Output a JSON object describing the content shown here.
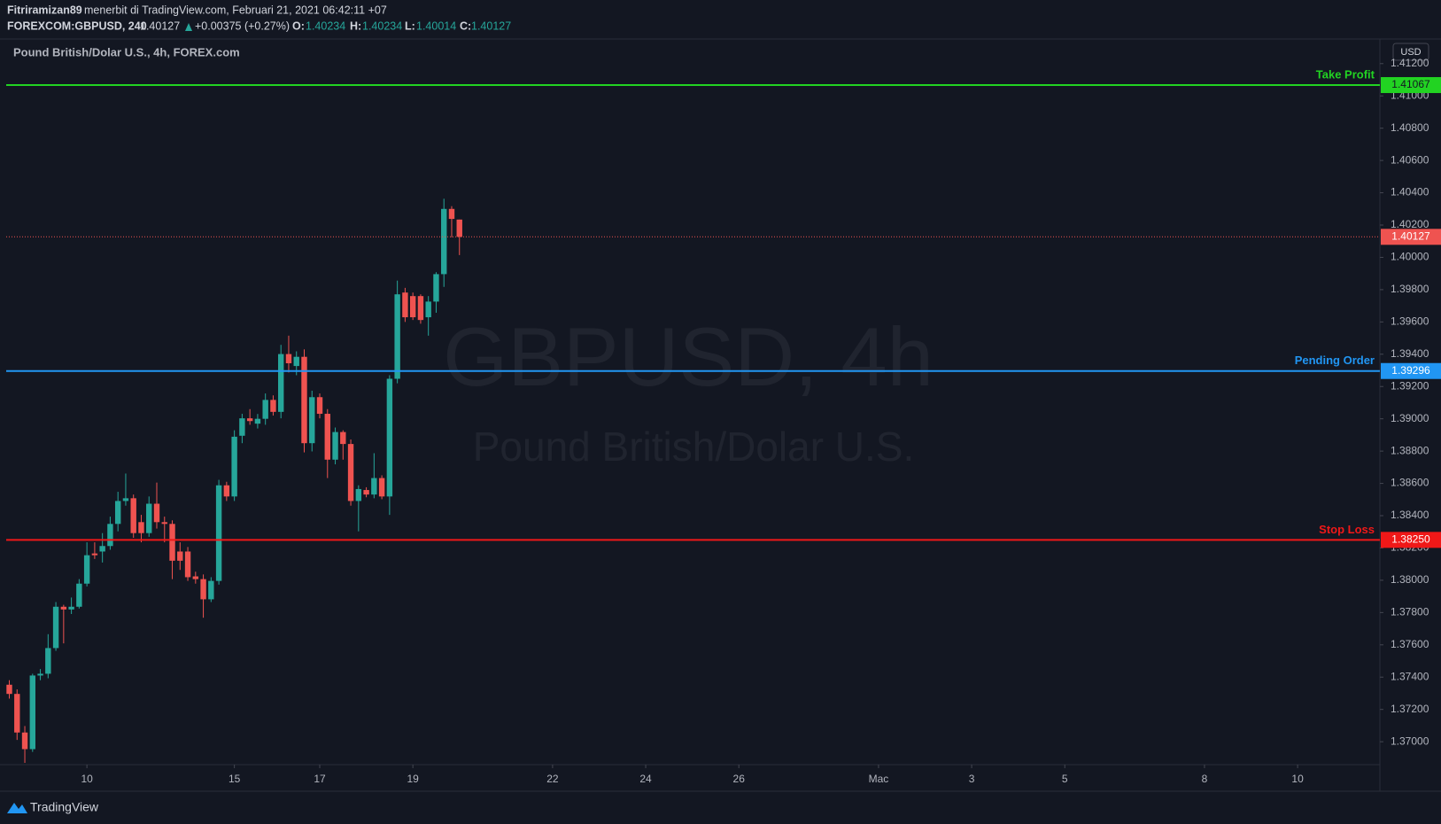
{
  "header": {
    "author": "Fitriramizan89",
    "published": "menerbit di TradingView.com, Februari 21, 2021 06:42:11 +07",
    "symbol": "FOREXCOM:GBPUSD, 240",
    "change": "+0.00375 (+0.27%)",
    "o_label": "O:",
    "h_label": "H:",
    "l_label": "L:",
    "c_label": "C:"
  },
  "footer": {
    "brand": "TradingView"
  },
  "chart_data": {
    "type": "candlestick",
    "title": "Pound British/Dolar U.S., 4h, FOREX.com",
    "watermark": "GBPUSD, 4h",
    "watermark_subtitle": "Pound British/Dolar U.S.",
    "currency": "USD",
    "up_color": "#26a69a",
    "down_color": "#ef5350",
    "grid": false,
    "open": [
      1.37353,
      1.37296,
      1.37057,
      1.36954,
      1.3741,
      1.37421,
      1.3758,
      1.37836,
      1.37819,
      1.37836,
      1.37979,
      1.38166,
      1.38178,
      1.38212,
      1.38349,
      1.38491,
      1.38508,
      1.3836,
      1.38292,
      1.38474,
      1.3836,
      1.38349,
      1.38178,
      1.38178,
      1.38024,
      1.38007,
      1.37882,
      1.37996,
      1.38588,
      1.38519,
      1.38895,
      1.39003,
      1.3897,
      1.39,
      1.39117,
      1.39043,
      1.39401,
      1.39327,
      1.39384,
      1.38849,
      1.39134,
      1.39031,
      1.38747,
      1.38918,
      1.38844,
      1.38491,
      1.38559,
      1.38531,
      1.38633,
      1.38519,
      1.39248,
      1.39782,
      1.3976,
      1.3976,
      1.39629,
      1.39726,
      1.39896,
      1.403,
      1.40234
    ],
    "high": [
      1.37381,
      1.37324,
      1.37097,
      1.37421,
      1.3745,
      1.37666,
      1.37865,
      1.37848,
      1.37893,
      1.38007,
      1.38235,
      1.38235,
      1.38292,
      1.38394,
      1.38548,
      1.38661,
      1.38531,
      1.38405,
      1.38519,
      1.38605,
      1.38394,
      1.38371,
      1.38235,
      1.38206,
      1.38053,
      1.38036,
      1.38019,
      1.38622,
      1.3861,
      1.38929,
      1.39031,
      1.3906,
      1.3903,
      1.39157,
      1.39145,
      1.39458,
      1.39515,
      1.39418,
      1.3943,
      1.39174,
      1.39157,
      1.3906,
      1.38946,
      1.38929,
      1.38872,
      1.38588,
      1.38576,
      1.38787,
      1.3865,
      1.3927,
      1.39856,
      1.39811,
      1.39782,
      1.39771,
      1.3976,
      1.39908,
      1.40363,
      1.40317,
      1.40234
    ],
    "low": [
      1.37267,
      1.37011,
      1.36869,
      1.36937,
      1.37381,
      1.37393,
      1.37563,
      1.37609,
      1.37791,
      1.37825,
      1.37962,
      1.38132,
      1.3811,
      1.38189,
      1.38303,
      1.38462,
      1.38263,
      1.38235,
      1.38269,
      1.3832,
      1.38235,
      1.38007,
      1.38064,
      1.37996,
      1.37979,
      1.37768,
      1.37865,
      1.37973,
      1.38491,
      1.38491,
      1.38849,
      1.38963,
      1.3894,
      1.38963,
      1.3902,
      1.39003,
      1.39287,
      1.3927,
      1.38792,
      1.38798,
      1.39003,
      1.38633,
      1.38718,
      1.38747,
      1.38462,
      1.38303,
      1.38514,
      1.38508,
      1.38502,
      1.38405,
      1.3922,
      1.396,
      1.39612,
      1.39589,
      1.39515,
      1.39657,
      1.39817,
      1.40124,
      1.40014
    ],
    "close": [
      1.37296,
      1.37057,
      1.36954,
      1.3741,
      1.37421,
      1.3758,
      1.37836,
      1.37819,
      1.37836,
      1.37979,
      1.38155,
      1.38155,
      1.38212,
      1.38349,
      1.38491,
      1.38508,
      1.38292,
      1.38292,
      1.38474,
      1.3836,
      1.38349,
      1.38121,
      1.38121,
      1.38019,
      1.38007,
      1.37882,
      1.37996,
      1.38588,
      1.38519,
      1.38889,
      1.39003,
      1.38986,
      1.39,
      1.39117,
      1.39043,
      1.39401,
      1.39344,
      1.39384,
      1.38849,
      1.39134,
      1.39031,
      1.38747,
      1.38918,
      1.38844,
      1.38491,
      1.38565,
      1.38531,
      1.38633,
      1.38519,
      1.39248,
      1.39771,
      1.39629,
      1.39629,
      1.39612,
      1.39726,
      1.39896,
      1.403,
      1.40238,
      1.40127
    ],
    "xlim": [
      -0.4,
      176.6
    ],
    "xticks": [
      {
        "value": 10,
        "label": "10"
      },
      {
        "value": 29,
        "label": "15"
      },
      {
        "value": 40,
        "label": "17"
      },
      {
        "value": 52,
        "label": "19"
      },
      {
        "value": 70,
        "label": "22"
      },
      {
        "value": 82,
        "label": "24"
      },
      {
        "value": 94,
        "label": "26"
      },
      {
        "value": 112,
        "label": "Mac"
      },
      {
        "value": 124,
        "label": "3"
      },
      {
        "value": 136,
        "label": "5"
      },
      {
        "value": 154,
        "label": "8"
      },
      {
        "value": 166,
        "label": "10"
      }
    ],
    "ylim": [
      1.36858,
      1.41347
    ],
    "yticks": [
      {
        "value": 1.37,
        "label": "1.37000"
      },
      {
        "value": 1.372,
        "label": "1.37200"
      },
      {
        "value": 1.374,
        "label": "1.37400"
      },
      {
        "value": 1.376,
        "label": "1.37600"
      },
      {
        "value": 1.378,
        "label": "1.37800"
      },
      {
        "value": 1.38,
        "label": "1.38000"
      },
      {
        "value": 1.382,
        "label": "1.38200"
      },
      {
        "value": 1.384,
        "label": "1.38400"
      },
      {
        "value": 1.386,
        "label": "1.38600"
      },
      {
        "value": 1.388,
        "label": "1.38800"
      },
      {
        "value": 1.39,
        "label": "1.39000"
      },
      {
        "value": 1.392,
        "label": "1.39200"
      },
      {
        "value": 1.394,
        "label": "1.39400"
      },
      {
        "value": 1.396,
        "label": "1.39600"
      },
      {
        "value": 1.398,
        "label": "1.39800"
      },
      {
        "value": 1.4,
        "label": "1.40000"
      },
      {
        "value": 1.402,
        "label": "1.40200"
      },
      {
        "value": 1.404,
        "label": "1.40400"
      },
      {
        "value": 1.406,
        "label": "1.40600"
      },
      {
        "value": 1.408,
        "label": "1.40800"
      },
      {
        "value": 1.41,
        "label": "1.41000"
      },
      {
        "value": 1.412,
        "label": "1.41200"
      }
    ],
    "levels": [
      {
        "name": "Take Profit",
        "value": 1.41067,
        "color": "#22d322"
      },
      {
        "name": "Pending Order",
        "value": 1.39296,
        "color": "#2196f3"
      },
      {
        "name": "Stop Loss",
        "value": 1.3825,
        "value_label": "1.38250",
        "color": "#f01818"
      }
    ]
  }
}
